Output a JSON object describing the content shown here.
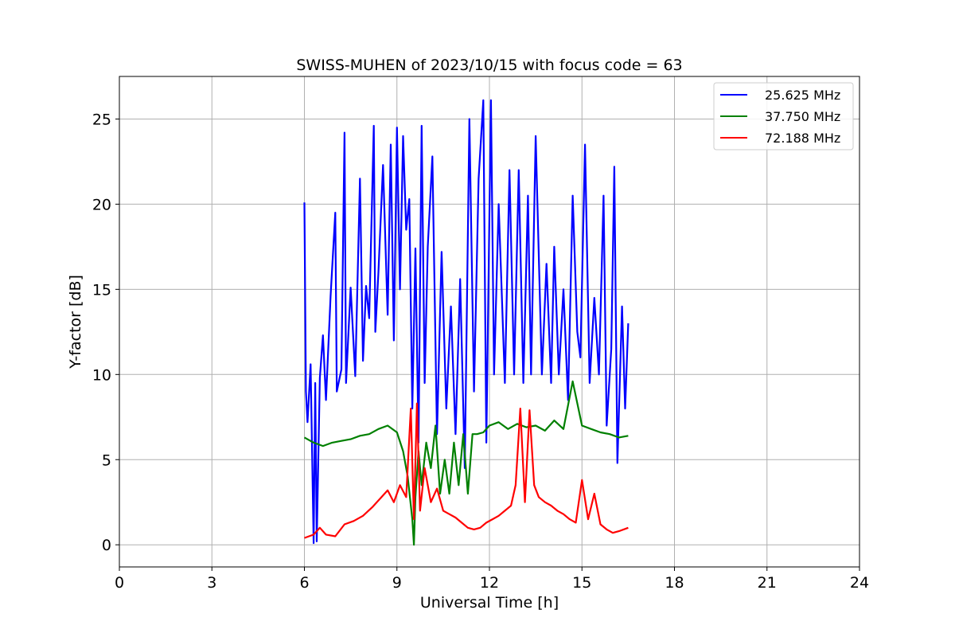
{
  "chart_data": {
    "type": "line",
    "title": "SWISS-MUHEN of 2023/10/15 with focus code = 63",
    "xlabel": "Universal Time [h]",
    "ylabel": "Y-factor [dB]",
    "xlim": [
      0,
      24
    ],
    "ylim": [
      -1.3,
      27.5
    ],
    "xticks": [
      0,
      3,
      6,
      9,
      12,
      15,
      18,
      21,
      24
    ],
    "yticks": [
      0,
      5,
      10,
      15,
      20,
      25
    ],
    "grid": true,
    "legend_position": "top-right",
    "series": [
      {
        "name": "25.625 MHz",
        "color": "#0000ff",
        "x": [
          6.0,
          6.05,
          6.1,
          6.2,
          6.3,
          6.35,
          6.4,
          6.5,
          6.6,
          6.7,
          6.85,
          7.0,
          7.05,
          7.2,
          7.3,
          7.35,
          7.5,
          7.65,
          7.8,
          7.9,
          8.0,
          8.1,
          8.25,
          8.3,
          8.4,
          8.55,
          8.7,
          8.8,
          8.9,
          9.0,
          9.1,
          9.2,
          9.3,
          9.4,
          9.5,
          9.6,
          9.7,
          9.8,
          9.9,
          10.0,
          10.15,
          10.3,
          10.45,
          10.6,
          10.75,
          10.9,
          11.05,
          11.2,
          11.35,
          11.5,
          11.65,
          11.8,
          11.9,
          12.05,
          12.15,
          12.3,
          12.5,
          12.65,
          12.8,
          12.95,
          13.1,
          13.25,
          13.35,
          13.5,
          13.7,
          13.85,
          14.0,
          14.1,
          14.25,
          14.4,
          14.55,
          14.7,
          14.85,
          14.95,
          15.1,
          15.25,
          15.4,
          15.55,
          15.7,
          15.8,
          15.95,
          16.05,
          16.15,
          16.3,
          16.4,
          16.5
        ],
        "y": [
          20.1,
          9.0,
          7.2,
          10.6,
          0.1,
          9.5,
          0.2,
          9.8,
          12.3,
          8.5,
          14.6,
          19.5,
          9.0,
          10.3,
          24.2,
          9.5,
          15.1,
          9.9,
          21.5,
          10.8,
          15.2,
          13.3,
          24.6,
          12.5,
          16.0,
          22.3,
          13.5,
          23.5,
          12.0,
          24.5,
          15.0,
          24.0,
          18.5,
          20.3,
          8.0,
          17.4,
          6.0,
          24.6,
          9.5,
          17.5,
          22.8,
          6.5,
          17.2,
          8.0,
          14.0,
          6.5,
          15.6,
          4.5,
          25.0,
          9.0,
          21.5,
          26.1,
          6.0,
          26.1,
          10.0,
          20.0,
          9.5,
          22.0,
          10.0,
          22.0,
          9.5,
          20.5,
          10.0,
          24.0,
          10.0,
          16.5,
          9.5,
          17.5,
          10.0,
          15.0,
          8.5,
          20.5,
          12.5,
          11.0,
          23.5,
          9.5,
          14.5,
          10.0,
          20.5,
          7.0,
          11.5,
          22.2,
          4.8,
          14.0,
          8.0,
          13.0
        ]
      },
      {
        "name": "37.750 MHz",
        "color": "#008000",
        "x": [
          6.0,
          6.3,
          6.6,
          6.9,
          7.2,
          7.5,
          7.8,
          8.1,
          8.4,
          8.7,
          9.0,
          9.2,
          9.35,
          9.5,
          9.55,
          9.6,
          9.7,
          9.8,
          9.95,
          10.1,
          10.25,
          10.4,
          10.55,
          10.7,
          10.85,
          11.0,
          11.15,
          11.3,
          11.45,
          11.6,
          11.8,
          12.0,
          12.3,
          12.6,
          12.9,
          13.2,
          13.5,
          13.8,
          14.1,
          14.4,
          14.7,
          15.0,
          15.3,
          15.6,
          15.9,
          16.2,
          16.5
        ],
        "y": [
          6.3,
          6.0,
          5.8,
          6.0,
          6.1,
          6.2,
          6.4,
          6.5,
          6.8,
          7.0,
          6.6,
          5.5,
          4.0,
          1.5,
          0.0,
          2.8,
          5.5,
          3.5,
          6.0,
          4.5,
          7.0,
          3.0,
          5.0,
          3.0,
          6.0,
          3.5,
          6.5,
          3.0,
          6.5,
          6.5,
          6.6,
          7.0,
          7.2,
          6.8,
          7.1,
          6.9,
          7.0,
          6.7,
          7.3,
          6.8,
          9.6,
          7.0,
          6.8,
          6.6,
          6.5,
          6.3,
          6.4
        ]
      },
      {
        "name": "72.188 MHz",
        "color": "#ff0000",
        "x": [
          6.0,
          6.3,
          6.5,
          6.7,
          7.0,
          7.3,
          7.6,
          7.9,
          8.2,
          8.5,
          8.7,
          8.9,
          9.1,
          9.3,
          9.45,
          9.55,
          9.65,
          9.75,
          9.9,
          10.1,
          10.3,
          10.5,
          10.7,
          10.9,
          11.1,
          11.3,
          11.5,
          11.7,
          11.9,
          12.1,
          12.3,
          12.5,
          12.7,
          12.85,
          13.0,
          13.15,
          13.3,
          13.45,
          13.6,
          13.8,
          14.0,
          14.2,
          14.4,
          14.6,
          14.8,
          15.0,
          15.2,
          15.4,
          15.6,
          15.8,
          16.0,
          16.2,
          16.5
        ],
        "y": [
          0.4,
          0.6,
          1.0,
          0.6,
          0.5,
          1.2,
          1.4,
          1.7,
          2.2,
          2.8,
          3.2,
          2.5,
          3.5,
          2.8,
          8.0,
          1.5,
          8.3,
          2.0,
          4.5,
          2.5,
          3.3,
          2.0,
          1.8,
          1.6,
          1.3,
          1.0,
          0.9,
          1.0,
          1.3,
          1.5,
          1.7,
          2.0,
          2.3,
          3.5,
          8.0,
          2.5,
          7.9,
          3.5,
          2.8,
          2.5,
          2.3,
          2.0,
          1.8,
          1.5,
          1.3,
          3.8,
          1.5,
          3.0,
          1.2,
          0.9,
          0.7,
          0.8,
          1.0
        ]
      }
    ]
  }
}
